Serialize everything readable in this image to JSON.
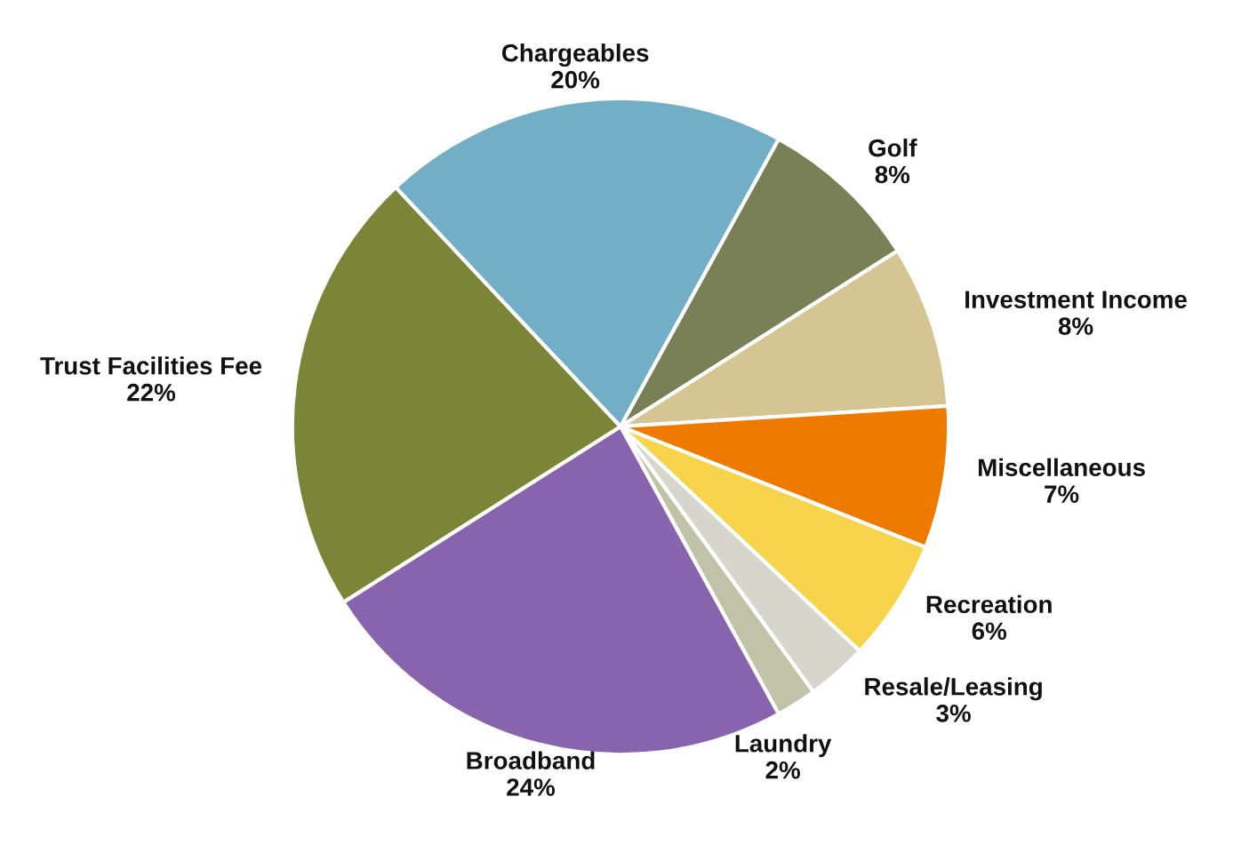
{
  "chart_data": {
    "type": "pie",
    "categories": [
      "Golf",
      "Investment Income",
      "Miscellaneous",
      "Recreation",
      "Resale/Leasing",
      "Laundry",
      "Broadband",
      "Trust Facilities Fee",
      "Chargeables"
    ],
    "values": [
      8,
      8,
      7,
      6,
      3,
      2,
      24,
      22,
      20
    ],
    "colors": [
      "#7a8055",
      "#d4c593",
      "#ee7a00",
      "#f7d44c",
      "#d6d6cc",
      "#c0c3a8",
      "#8864ae",
      "#7a8538",
      "#72afc7"
    ],
    "value_labels": [
      "8%",
      "8%",
      "7%",
      "6%",
      "3%",
      "2%",
      "24%",
      "22%",
      "20%"
    ],
    "legend": false
  }
}
